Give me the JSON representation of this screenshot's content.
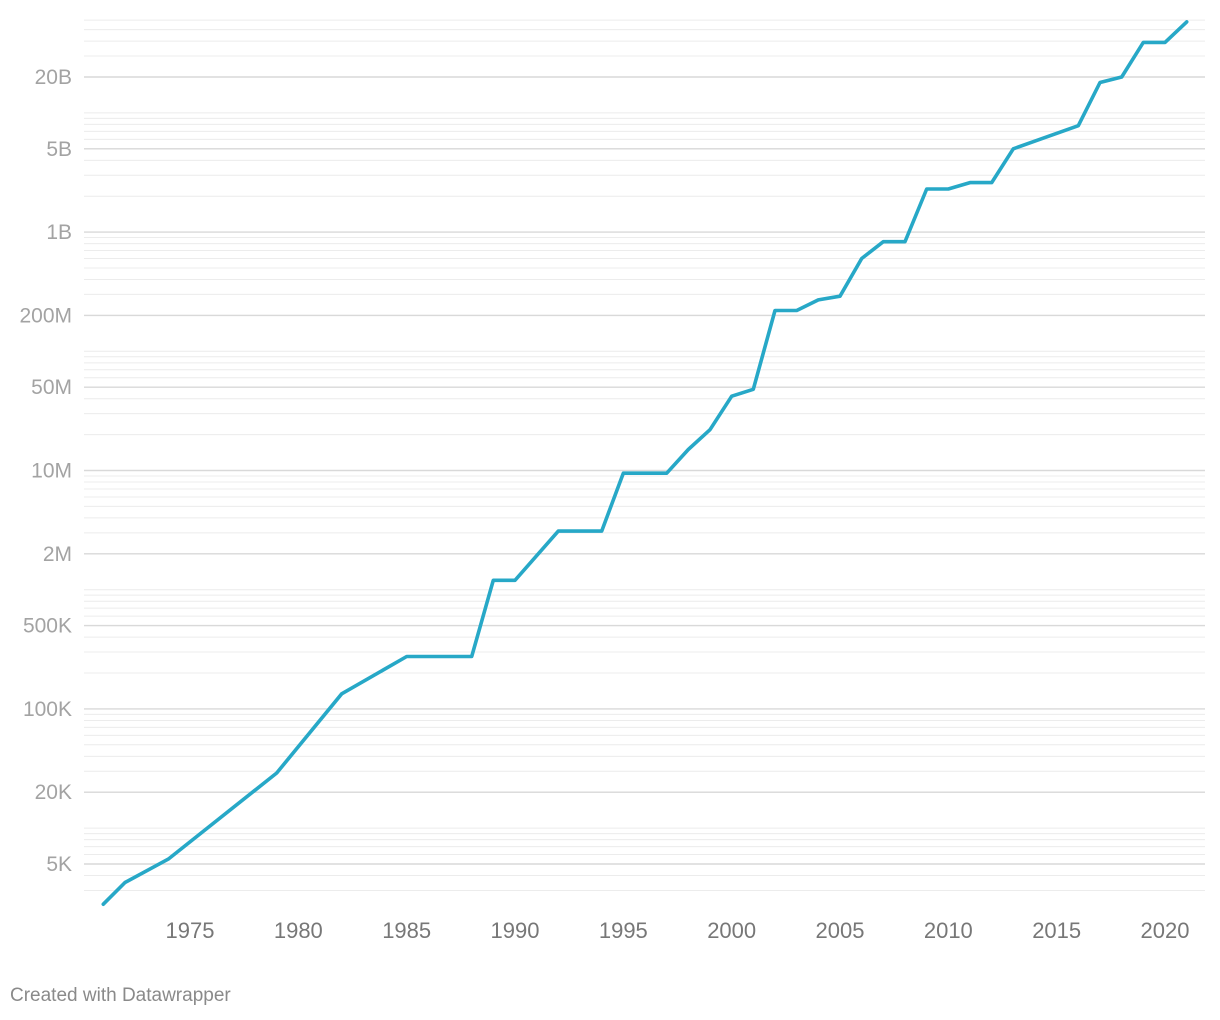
{
  "chart_data": {
    "type": "line",
    "title": "",
    "xlabel": "",
    "ylabel": "",
    "y_scale": "log",
    "xlim": [
      1971,
      2021
    ],
    "ylim": [
      1500,
      60000000000
    ],
    "y_ticks": [
      {
        "value": 5000,
        "label": "5K"
      },
      {
        "value": 20000,
        "label": "20K"
      },
      {
        "value": 100000,
        "label": "100K"
      },
      {
        "value": 500000,
        "label": "500K"
      },
      {
        "value": 2000000,
        "label": "2M"
      },
      {
        "value": 10000000,
        "label": "10M"
      },
      {
        "value": 50000000,
        "label": "50M"
      },
      {
        "value": 200000000,
        "label": "200M"
      },
      {
        "value": 1000000000,
        "label": "1B"
      },
      {
        "value": 5000000000,
        "label": "5B"
      },
      {
        "value": 20000000000,
        "label": "20B"
      }
    ],
    "x_ticks": [
      {
        "value": 1975,
        "label": "1975"
      },
      {
        "value": 1980,
        "label": "1980"
      },
      {
        "value": 1985,
        "label": "1985"
      },
      {
        "value": 1990,
        "label": "1990"
      },
      {
        "value": 1995,
        "label": "1995"
      },
      {
        "value": 2000,
        "label": "2000"
      },
      {
        "value": 2005,
        "label": "2005"
      },
      {
        "value": 2010,
        "label": "2010"
      },
      {
        "value": 2015,
        "label": "2015"
      },
      {
        "value": 2020,
        "label": "2020"
      }
    ],
    "grid": true,
    "line_color": "#27a8c7",
    "series": [
      {
        "x": [
          1971,
          1972,
          1974,
          1979,
          1982,
          1985,
          1988,
          1989,
          1990,
          1992,
          1994,
          1995,
          1997,
          1998,
          1999,
          2000,
          2001,
          2002,
          2003,
          2004,
          2005,
          2006,
          2007,
          2008,
          2009,
          2010,
          2011,
          2012,
          2013,
          2014,
          2016,
          2017,
          2018,
          2019,
          2020,
          2021
        ],
        "values": [
          2300,
          3500,
          5500,
          29000,
          134000,
          275000,
          275000,
          1200000,
          1200000,
          3100000,
          3100000,
          9500000,
          9500000,
          15000000,
          22000000,
          42000000,
          48000000,
          220000000,
          220000000,
          270000000,
          290000000,
          600000000,
          830000000,
          830000000,
          2300000000,
          2300000000,
          2600000000,
          2600000000,
          5000000000,
          5800000000,
          7800000000,
          18000000000,
          20000000000,
          39000000000,
          39000000000,
          58000000000
        ]
      }
    ]
  },
  "footer": {
    "credit": "Created with Datawrapper"
  }
}
